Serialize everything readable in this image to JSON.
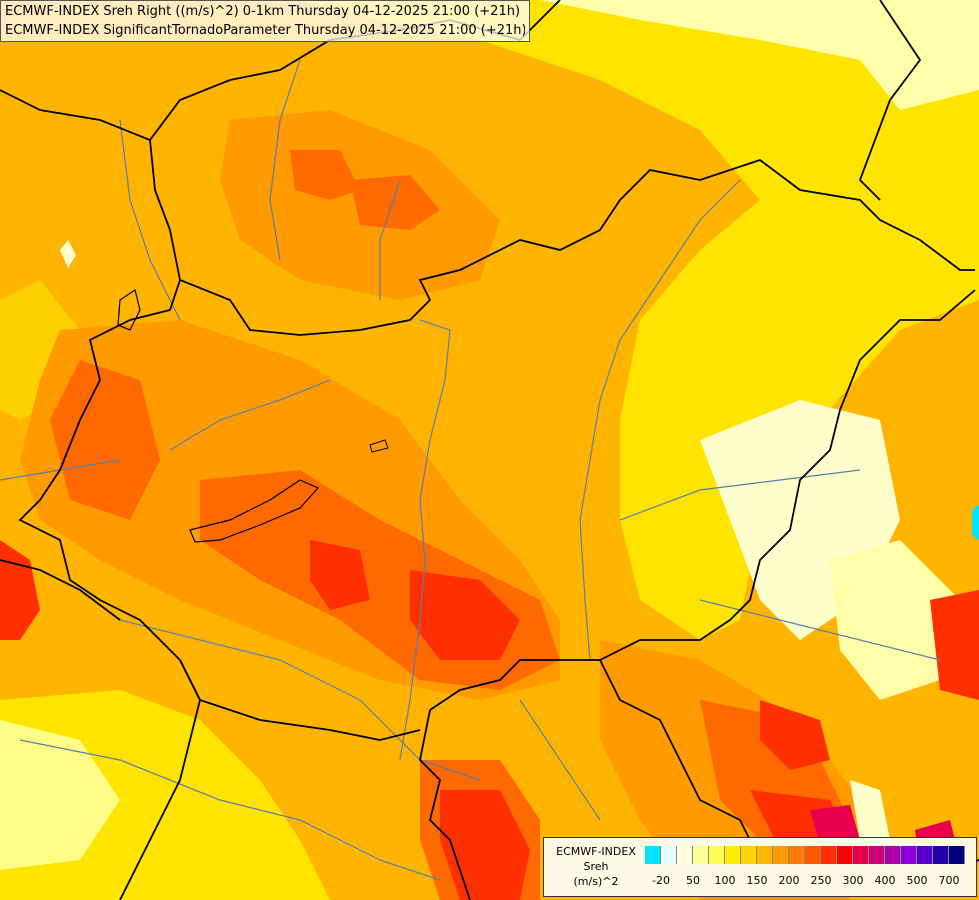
{
  "header": {
    "line1": "ECMWF-INDEX Sreh Right ((m/s)^2) 0-1km Thursday 04-12-2025 21:00 (+21h)",
    "line2": "ECMWF-INDEX SignificantTornadoParameter Thursday 04-12-2025 21:00 (+21h)"
  },
  "legend": {
    "line1": "ECMWF-INDEX",
    "line2": "Sreh",
    "line3": "(m/s)^2",
    "colors": [
      "#00e5ff",
      "#e6ffff",
      "#ffffe0",
      "#ffff99",
      "#ffff55",
      "#ffee00",
      "#ffd200",
      "#ffb400",
      "#ff9a00",
      "#ff7a00",
      "#ff5a00",
      "#ff3000",
      "#ff0000",
      "#e6004c",
      "#cc0077",
      "#aa00aa",
      "#8800dd",
      "#5500cc",
      "#2200aa",
      "#000080"
    ],
    "ticks": [
      "-20",
      "50",
      "100",
      "150",
      "200",
      "250",
      "300",
      "400",
      "500",
      "700"
    ]
  },
  "colors": {
    "light_yellow": "#ffffcc",
    "yellow": "#ffee44",
    "gold": "#ffd000",
    "orange": "#ffaa00",
    "dark_orange": "#ff8800",
    "red_orange": "#ff5500",
    "red": "#ff2200",
    "crimson": "#e6004c",
    "border": "#000000",
    "river": "#5a7fa8"
  }
}
